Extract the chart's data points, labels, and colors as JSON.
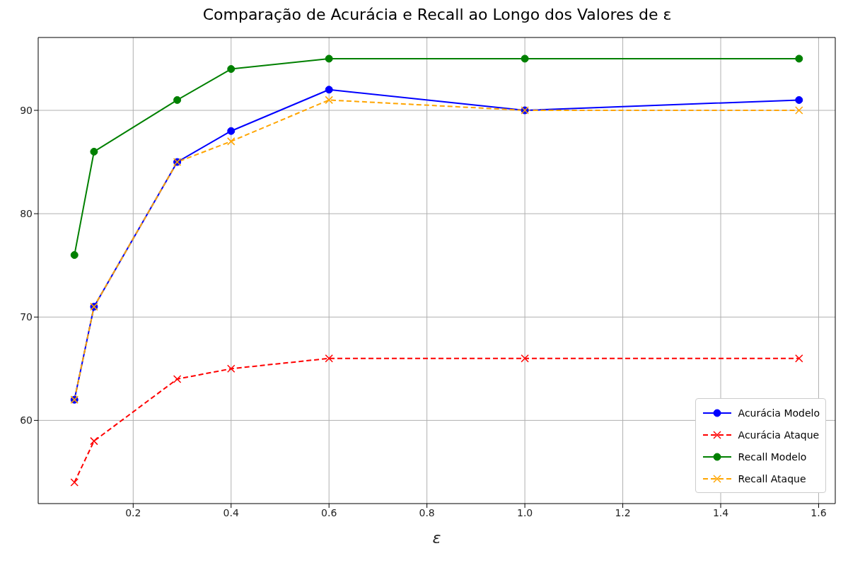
{
  "chart_data": {
    "type": "line",
    "title": "Comparação de Acurácia e Recall ao Longo dos Valores de ε",
    "xlabel": "ε",
    "x": [
      0.08,
      0.12,
      0.29,
      0.4,
      0.6,
      1.0,
      1.56
    ],
    "series": [
      {
        "name": "Acurácia Modelo",
        "color": "#0000ff",
        "values": [
          62,
          71,
          85,
          88,
          92,
          90,
          91
        ],
        "marker": "circle",
        "line_style": "solid"
      },
      {
        "name": "Acurácia Ataque",
        "color": "#ff0000",
        "values": [
          54,
          58,
          64,
          65,
          66,
          66,
          66
        ],
        "marker": "cross",
        "line_style": "dashed"
      },
      {
        "name": "Recall Modelo",
        "color": "#008000",
        "values": [
          76,
          86,
          91,
          94,
          95,
          95,
          95
        ],
        "marker": "circle",
        "line_style": "solid"
      },
      {
        "name": "Recall Ataque",
        "color": "#ffa500",
        "values": [
          62,
          71,
          85,
          87,
          91,
          90,
          90
        ],
        "marker": "cross",
        "line_style": "dashed"
      }
    ],
    "xlim": [
      0.006,
      1.634
    ],
    "xticks": [
      {
        "value": 0.2,
        "label": "0.2"
      },
      {
        "value": 0.4,
        "label": "0.4"
      },
      {
        "value": 0.6,
        "label": "0.6"
      },
      {
        "value": 0.8,
        "label": "0.8"
      },
      {
        "value": 1.0,
        "label": "1.0"
      },
      {
        "value": 1.2,
        "label": "1.2"
      },
      {
        "value": 1.4,
        "label": "1.4"
      },
      {
        "value": 1.6,
        "label": "1.6"
      }
    ],
    "ylim": [
      51.95,
      97.05
    ],
    "yticks": [
      60,
      70,
      80,
      90
    ],
    "grid": true,
    "legend": "bottom right"
  }
}
